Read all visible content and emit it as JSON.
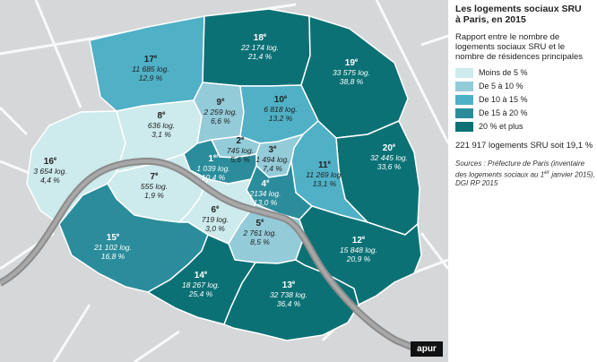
{
  "title": "Les logements sociaux SRU\nà Paris, en 2015",
  "subtitle": "Rapport entre le nombre de logements sociaux SRU et le nombre de résidences principales",
  "legend": [
    {
      "label": "Moins de 5 %",
      "color": "#cdeaec"
    },
    {
      "label": "De 5 à 10 %",
      "color": "#94cbd9"
    },
    {
      "label": "De 10 à 15 %",
      "color": "#4fb0c6"
    },
    {
      "label": "De 15 à 20 %",
      "color": "#2b8d9c"
    },
    {
      "label": "20 % et plus",
      "color": "#0b7175"
    }
  ],
  "total": "221 917 logements SRU soit 19,1 %",
  "sources": "Sources : Préfecture de Paris (inventaire des logements sociaux au 1er janvier 2015), DGI RP 2015",
  "logo": "apur",
  "arrondissements": [
    {
      "num": "1",
      "sup": "er",
      "count": "1 039 log.",
      "pct": "10,4 %"
    },
    {
      "num": "2",
      "sup": "e",
      "count": "745 log.",
      "pct": "5,6 %"
    },
    {
      "num": "3",
      "sup": "e",
      "count": "1 494 log.",
      "pct": "7,4 %"
    },
    {
      "num": "4",
      "sup": "e",
      "count": "2134 log.",
      "pct": "13,0 %"
    },
    {
      "num": "5",
      "sup": "e",
      "count": "2 761 log.",
      "pct": "8,5 %"
    },
    {
      "num": "6",
      "sup": "e",
      "count": "719 log.",
      "pct": "3,0 %"
    },
    {
      "num": "7",
      "sup": "e",
      "count": "555 log.",
      "pct": "1,9 %"
    },
    {
      "num": "8",
      "sup": "e",
      "count": "636 log.",
      "pct": "3,1 %"
    },
    {
      "num": "9",
      "sup": "e",
      "count": "2 259 log.",
      "pct": "6,6 %"
    },
    {
      "num": "10",
      "sup": "e",
      "count": "6 818 log.",
      "pct": "13,2 %"
    },
    {
      "num": "11",
      "sup": "e",
      "count": "11 269 log.",
      "pct": "13,1 %"
    },
    {
      "num": "12",
      "sup": "e",
      "count": "15 848 log.",
      "pct": "20,9 %"
    },
    {
      "num": "13",
      "sup": "e",
      "count": "32 738 log.",
      "pct": "36,4 %"
    },
    {
      "num": "14",
      "sup": "e",
      "count": "18 267 log.",
      "pct": "25,4 %"
    },
    {
      "num": "15",
      "sup": "e",
      "count": "21 102 log.",
      "pct": "16,8 %"
    },
    {
      "num": "16",
      "sup": "e",
      "count": "3 654 log.",
      "pct": "4,4 %"
    },
    {
      "num": "17",
      "sup": "e",
      "count": "11 685 log.",
      "pct": "12,9 %"
    },
    {
      "num": "18",
      "sup": "e",
      "count": "22 174 log.",
      "pct": "21,4 %"
    },
    {
      "num": "19",
      "sup": "e",
      "count": "33 575 log.",
      "pct": "38,8 %"
    },
    {
      "num": "20",
      "sup": "e",
      "count": "32 445 log.",
      "pct": "33,6 %"
    }
  ]
}
